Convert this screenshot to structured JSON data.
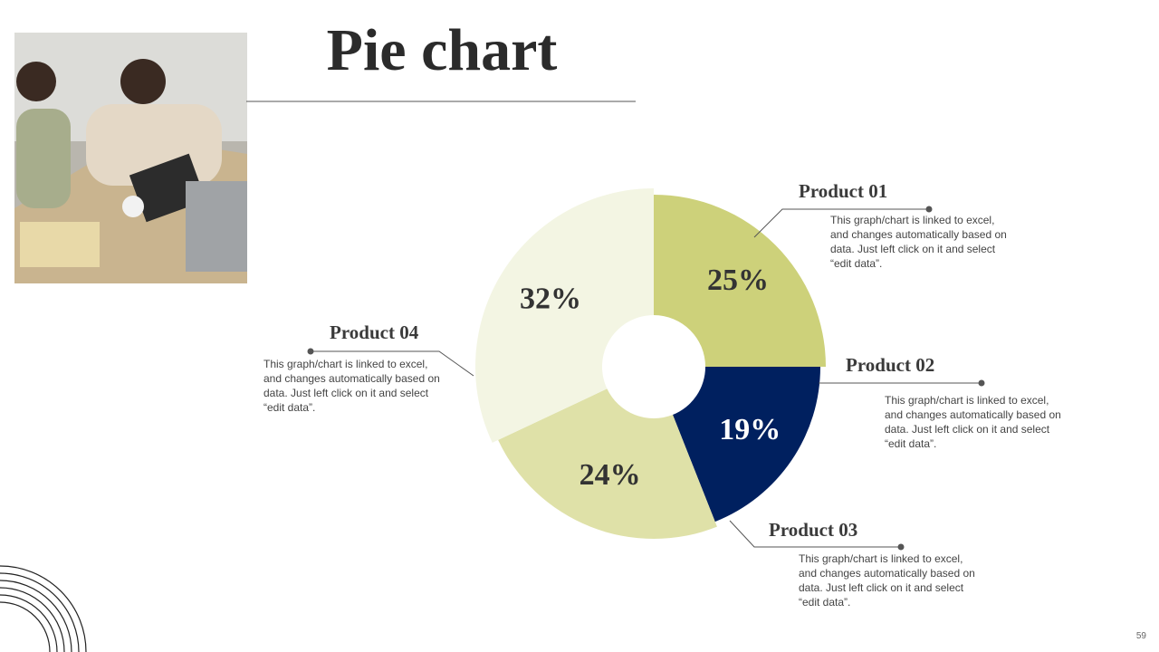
{
  "chart_data": {
    "type": "pie",
    "title": "Pie chart",
    "categories": [
      "Product 01",
      "Product 02",
      "Product 03",
      "Product 04"
    ],
    "values": [
      25,
      19,
      24,
      32
    ],
    "value_labels": [
      "25%",
      "19%",
      "24%",
      "32%"
    ],
    "colors": [
      "#cdd17a",
      "#00205f",
      "#dfe1a8",
      "#f3f5e3"
    ],
    "descriptions": [
      "This graph/chart is linked to excel, and changes automatically based on data. Just left click on it and select “edit data”.",
      "This graph/chart is linked to excel, and changes automatically based on data. Just left click on it and select “edit data”.",
      "This graph/chart is linked to excel, and changes automatically based on data. Just left click on it and select “edit data”.",
      "This graph/chart is linked to excel, and changes automatically based on data. Just left click on it and select “edit data”."
    ]
  },
  "page_number": "59"
}
